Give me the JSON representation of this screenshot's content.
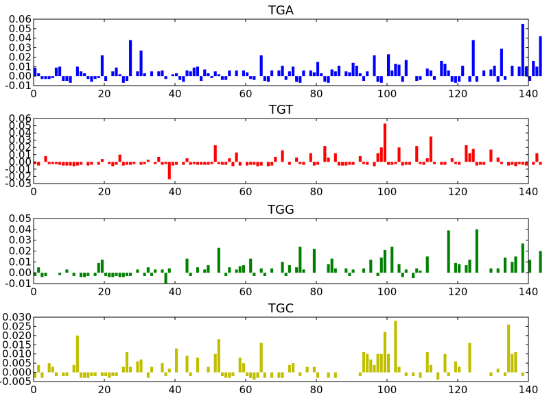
{
  "chart_data": [
    {
      "type": "bar",
      "title": "TGA",
      "color": "#0000ff",
      "xlim": [
        0,
        140
      ],
      "ylim": [
        -0.01,
        0.06
      ],
      "xticks": [
        0,
        20,
        40,
        60,
        80,
        100,
        120,
        140
      ],
      "yticks": [
        -0.01,
        0.0,
        0.01,
        0.02,
        0.03,
        0.04,
        0.05,
        0.06
      ],
      "ytick_labels": [
        "-0.01",
        "0.00",
        "0.01",
        "0.02",
        "0.03",
        "0.04",
        "0.05",
        "0.06"
      ],
      "grid": false,
      "values": [
        0.009,
        0.003,
        -0.003,
        -0.003,
        -0.003,
        -0.002,
        0.009,
        0.01,
        -0.005,
        -0.005,
        -0.007,
        0.0,
        0.01,
        0.005,
        0.003,
        -0.003,
        -0.006,
        -0.003,
        -0.002,
        0.022,
        -0.005,
        0.0,
        0.005,
        0.009,
        0.002,
        -0.007,
        -0.005,
        0.038,
        0.0,
        0.005,
        0.027,
        0.003,
        0.0,
        0.005,
        0.0,
        0.005,
        0.006,
        -0.003,
        0.0,
        0.002,
        0.003,
        -0.004,
        -0.006,
        0.006,
        0.005,
        0.009,
        0.01,
        -0.005,
        0.007,
        0.003,
        -0.002,
        0.005,
        0.002,
        -0.004,
        -0.004,
        0.006,
        0.0,
        0.006,
        0.0,
        0.006,
        0.004,
        -0.003,
        -0.004,
        0.0,
        0.022,
        -0.005,
        -0.006,
        0.006,
        0.0,
        0.006,
        0.011,
        -0.004,
        0.005,
        0.01,
        -0.006,
        -0.007,
        0.006,
        0.0,
        0.006,
        0.004,
        0.015,
        0.003,
        -0.006,
        -0.007,
        0.007,
        0.005,
        0.011,
        0.0,
        0.005,
        0.004,
        0.014,
        0.011,
        0.003,
        -0.005,
        0.005,
        0.0,
        0.022,
        -0.006,
        -0.007,
        0.0,
        0.023,
        0.006,
        0.013,
        0.012,
        -0.006,
        0.017,
        0.0,
        0.0,
        -0.005,
        -0.004,
        0.0,
        0.008,
        0.006,
        -0.004,
        0.0,
        0.016,
        0.013,
        0.006,
        -0.006,
        -0.007,
        -0.006,
        0.011,
        0.0,
        -0.006,
        0.038,
        -0.006,
        0.0,
        0.006,
        0.0,
        0.007,
        0.011,
        -0.006,
        0.029,
        -0.004,
        0.0,
        0.011,
        0.0,
        0.01,
        0.055,
        0.01,
        -0.005,
        0.016,
        0.01,
        0.042
      ]
    },
    {
      "type": "bar",
      "title": "TGT",
      "color": "#ff0000",
      "xlim": [
        0,
        140
      ],
      "ylim": [
        -0.03,
        0.06
      ],
      "xticks": [
        0,
        20,
        40,
        60,
        80,
        100,
        120,
        140
      ],
      "yticks": [
        -0.03,
        -0.02,
        -0.01,
        0.0,
        0.01,
        0.02,
        0.03,
        0.04,
        0.05,
        0.06
      ],
      "ytick_labels": [
        "-0.03",
        "-0.02",
        "-0.01",
        "0.00",
        "0.01",
        "0.02",
        "0.03",
        "0.04",
        "0.05",
        "0.06"
      ],
      "grid": false,
      "values": [
        -0.003,
        -0.005,
        0.0,
        0.008,
        -0.003,
        -0.003,
        -0.003,
        -0.004,
        -0.005,
        -0.005,
        -0.005,
        -0.006,
        -0.005,
        -0.004,
        0.0,
        -0.005,
        -0.004,
        0.0,
        -0.004,
        0.004,
        0.0,
        -0.003,
        -0.006,
        -0.004,
        0.01,
        -0.005,
        -0.004,
        -0.004,
        -0.003,
        0.0,
        -0.004,
        -0.003,
        0.003,
        0.0,
        -0.003,
        0.007,
        -0.004,
        -0.003,
        -0.024,
        -0.005,
        -0.004,
        0.0,
        -0.004,
        0.005,
        -0.004,
        -0.003,
        -0.004,
        -0.004,
        -0.004,
        -0.004,
        -0.003,
        0.023,
        -0.003,
        -0.004,
        -0.004,
        0.005,
        -0.006,
        0.013,
        -0.005,
        0.0,
        -0.005,
        -0.004,
        -0.004,
        -0.006,
        -0.005,
        0.0,
        -0.006,
        -0.005,
        0.007,
        0.0,
        0.016,
        0.0,
        -0.004,
        0.0,
        0.006,
        -0.003,
        -0.004,
        0.0,
        0.012,
        -0.005,
        -0.004,
        0.0,
        0.022,
        0.006,
        0.0,
        0.012,
        -0.005,
        -0.005,
        -0.005,
        -0.004,
        -0.004,
        0.0,
        0.008,
        -0.003,
        -0.004,
        0.0,
        -0.006,
        0.012,
        0.02,
        0.053,
        -0.004,
        -0.004,
        -0.003,
        0.02,
        -0.005,
        -0.004,
        -0.004,
        0.0,
        0.022,
        -0.003,
        -0.004,
        0.005,
        0.035,
        -0.003,
        0.0,
        -0.004,
        -0.004,
        0.0,
        0.005,
        -0.003,
        -0.004,
        0.0,
        0.023,
        0.012,
        0.018,
        -0.005,
        -0.004,
        -0.004,
        0.0,
        0.017,
        0.0,
        0.006,
        -0.003,
        0.0,
        -0.005,
        -0.004,
        -0.006,
        -0.003,
        -0.004,
        -0.005,
        0.0,
        -0.004,
        0.012,
        -0.004
      ]
    },
    {
      "type": "bar",
      "title": "TGG",
      "color": "#008000",
      "xlim": [
        0,
        140
      ],
      "ylim": [
        -0.01,
        0.05
      ],
      "xticks": [
        0,
        20,
        40,
        60,
        80,
        100,
        120,
        140
      ],
      "yticks": [
        -0.01,
        0.0,
        0.01,
        0.02,
        0.03,
        0.04,
        0.05
      ],
      "ytick_labels": [
        "-0.01",
        "0.00",
        "0.01",
        "0.02",
        "0.03",
        "0.04",
        "0.05"
      ],
      "grid": false,
      "values": [
        -0.003,
        0.005,
        -0.004,
        -0.003,
        0.0,
        0.0,
        0.0,
        -0.002,
        0.0,
        0.003,
        0.0,
        -0.003,
        0.0,
        -0.004,
        -0.004,
        -0.003,
        0.0,
        -0.003,
        0.009,
        0.012,
        -0.003,
        -0.004,
        -0.004,
        -0.003,
        -0.004,
        -0.004,
        -0.003,
        -0.003,
        0.0,
        0.003,
        0.0,
        -0.003,
        0.005,
        -0.003,
        0.003,
        0.0,
        0.003,
        -0.01,
        0.004,
        0.0,
        0.0,
        0.0,
        0.0,
        0.013,
        -0.003,
        0.0,
        0.005,
        0.0,
        0.003,
        0.007,
        0.0,
        0.0,
        0.023,
        0.0,
        -0.003,
        0.005,
        0.0,
        0.003,
        0.006,
        0.007,
        0.0,
        0.013,
        -0.003,
        0.0,
        0.004,
        -0.003,
        0.0,
        0.004,
        0.0,
        0.0,
        0.01,
        -0.003,
        0.007,
        0.0,
        0.005,
        0.024,
        0.003,
        0.0,
        0.0,
        0.022,
        0.0,
        0.0,
        0.0,
        0.008,
        0.013,
        0.004,
        0.0,
        0.0,
        0.004,
        -0.003,
        0.003,
        0.0,
        0.0,
        0.004,
        0.0,
        0.012,
        0.0,
        -0.003,
        0.014,
        0.021,
        0.0,
        0.024,
        0.0,
        0.008,
        -0.004,
        0.003,
        0.0,
        -0.005,
        0.004,
        0.002,
        0.0,
        0.015,
        0.0,
        0.0,
        0.0,
        0.0,
        0.0,
        0.039,
        0.0,
        0.009,
        0.008,
        0.0,
        0.007,
        0.012,
        0.0,
        0.04,
        0.0,
        0.0,
        0.0,
        0.004,
        0.0,
        0.004,
        0.0,
        0.014,
        0.0,
        0.01,
        0.015,
        0.0,
        0.027,
        0.0,
        0.012,
        0.0,
        0.0,
        0.02
      ]
    },
    {
      "type": "bar",
      "title": "TGC",
      "color": "#bfbf00",
      "xlim": [
        0,
        140
      ],
      "ylim": [
        -0.005,
        0.03
      ],
      "xticks": [
        0,
        20,
        40,
        60,
        80,
        100,
        120,
        140
      ],
      "yticks": [
        -0.005,
        0.0,
        0.005,
        0.01,
        0.015,
        0.02,
        0.025,
        0.03
      ],
      "ytick_labels": [
        "-0.005",
        "0.000",
        "0.005",
        "0.010",
        "0.015",
        "0.020",
        "0.025",
        "0.030"
      ],
      "grid": false,
      "values": [
        -0.003,
        0.004,
        -0.003,
        0.0,
        0.005,
        0.003,
        -0.002,
        0.0,
        -0.002,
        -0.002,
        0.0,
        0.004,
        0.02,
        -0.003,
        -0.003,
        -0.003,
        -0.002,
        -0.002,
        0.0,
        -0.002,
        -0.002,
        -0.003,
        -0.002,
        -0.002,
        0.0,
        0.003,
        0.011,
        0.003,
        0.0,
        0.006,
        0.007,
        0.0,
        -0.003,
        0.003,
        0.0,
        0.0,
        0.005,
        -0.002,
        0.002,
        0.0,
        0.013,
        0.0,
        0.0,
        0.009,
        -0.002,
        0.0,
        0.008,
        0.0,
        0.0,
        0.003,
        0.0,
        0.01,
        0.018,
        -0.002,
        -0.003,
        -0.003,
        -0.002,
        0.0,
        0.008,
        0.005,
        -0.002,
        -0.003,
        -0.004,
        -0.003,
        0.016,
        -0.003,
        0.0,
        -0.003,
        0.0,
        -0.003,
        -0.003,
        0.0,
        0.004,
        0.005,
        0.0,
        -0.002,
        0.0,
        0.003,
        0.0,
        0.003,
        -0.003,
        0.0,
        0.0,
        -0.003,
        0.0,
        -0.003,
        0.0,
        0.0,
        0.0,
        0.0,
        0.0,
        0.0,
        -0.002,
        0.011,
        0.01,
        0.007,
        0.004,
        0.01,
        0.01,
        0.022,
        0.01,
        0.0,
        0.028,
        0.003,
        0.0,
        -0.002,
        0.0,
        -0.002,
        0.0,
        -0.003,
        0.0,
        0.011,
        0.004,
        0.0,
        -0.004,
        0.0,
        0.01,
        -0.002,
        0.0,
        0.006,
        0.003,
        0.0,
        0.0,
        0.016,
        0.0,
        0.0,
        0.0,
        0.0,
        0.0,
        -0.002,
        0.0,
        0.002,
        0.0,
        -0.002,
        0.026,
        0.01,
        0.011,
        0.0,
        -0.002,
        0.0
      ]
    }
  ]
}
